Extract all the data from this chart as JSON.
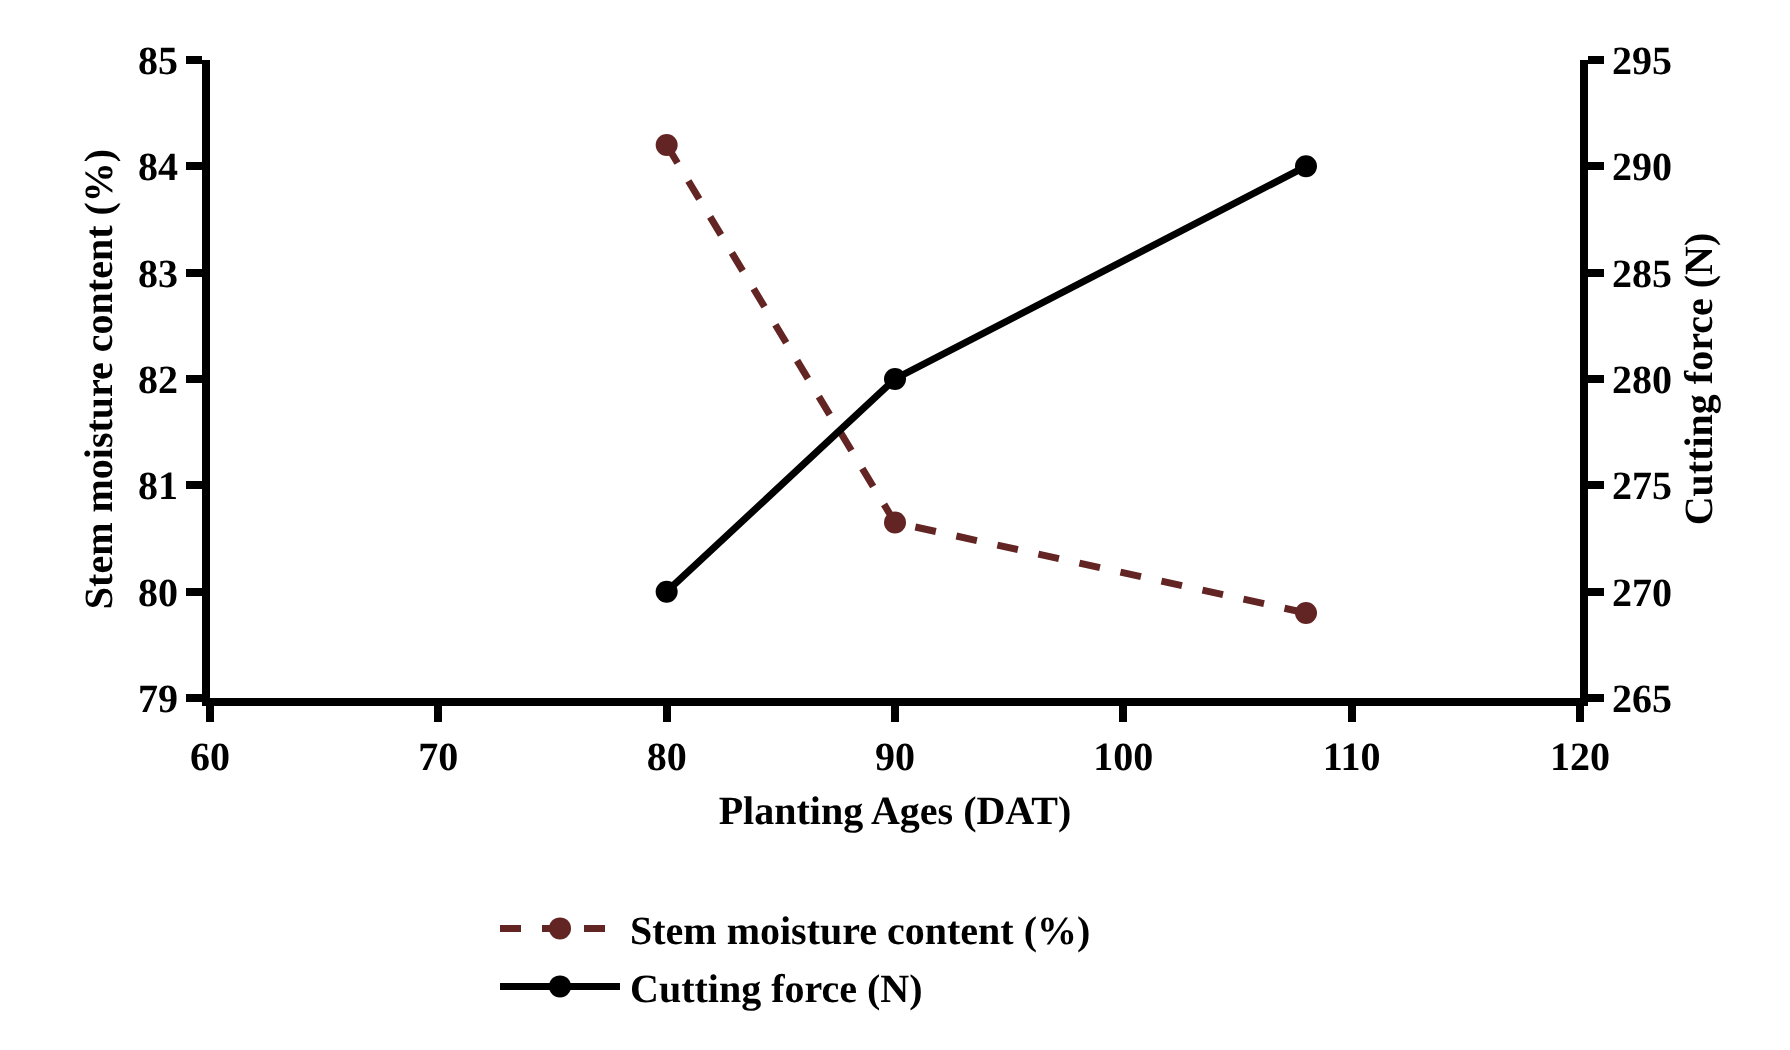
{
  "chart_data": {
    "type": "line",
    "xlabel": "Planting Ages (DAT)",
    "ylabel": "Stem moisture content (%)",
    "y2label": "Cutting force (N)",
    "xlim": [
      60,
      120
    ],
    "xticks": [
      60,
      70,
      80,
      90,
      100,
      110,
      120
    ],
    "ylim": [
      79,
      85
    ],
    "yticks": [
      79,
      80,
      81,
      82,
      83,
      84,
      85
    ],
    "y2lim": [
      265,
      295
    ],
    "y2ticks": [
      265,
      270,
      275,
      280,
      285,
      290,
      295
    ],
    "grid": false,
    "legend": "bottom",
    "marker": "circle",
    "series": [
      {
        "name": "Stem moisture content (%)",
        "color": "#632523",
        "x": [
          80,
          90,
          108
        ],
        "values": [
          84.2,
          80.65,
          79.8
        ],
        "line_style": "dashed"
      },
      {
        "name": "Cutting force (N)",
        "color": "#000000",
        "x": [
          80,
          90,
          108
        ],
        "values": [
          270,
          280,
          290
        ],
        "axis": "y2",
        "line_style": "solid"
      }
    ]
  }
}
